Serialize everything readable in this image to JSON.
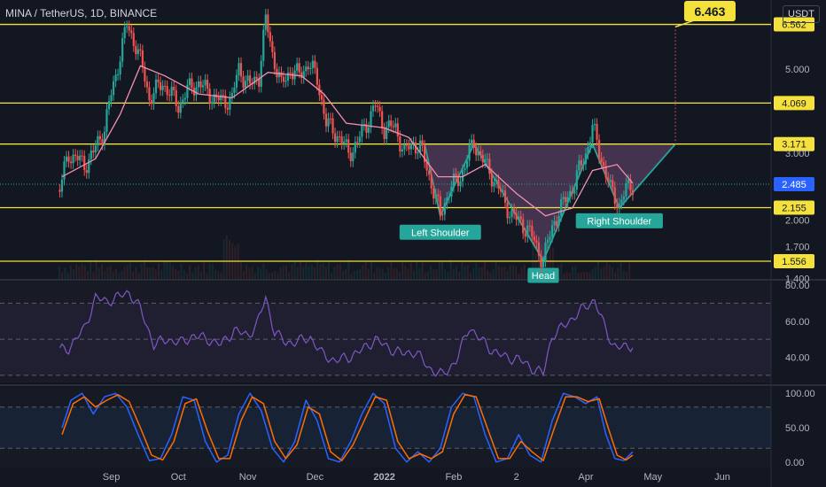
{
  "header": {
    "ticker": "MINA / TetherUS, 1D, BINANCE",
    "currency": "USDT"
  },
  "colors": {
    "background": "#131722",
    "up": "#26a69a",
    "down": "#ef5350",
    "ma": "#f48fb1",
    "level": "#f5e13b",
    "pattern_fill": "#6d4b74",
    "pattern_line": "#26a69a",
    "rsi": "#7e57c2",
    "stoch_k": "#2962ff",
    "stoch_d": "#ff6d00",
    "grid": "#2a2e39"
  },
  "chart_data": [
    {
      "type": "candlestick",
      "name": "price",
      "x_labels": [
        "Sep",
        "Oct",
        "Nov",
        "Dec",
        "2022",
        "Feb",
        "2",
        "Apr",
        "May",
        "Jun"
      ],
      "price_axis_ticks": [
        1.4,
        1.7,
        2.0,
        3.0,
        5.0
      ],
      "price_axis_tick_labels": [
        "1.400",
        "1.700",
        "2.000",
        "3.000",
        "5.000"
      ],
      "scale": "log",
      "ylim": [
        1.35,
        7.5
      ],
      "horizontal_levels": [
        6.562,
        4.069,
        3.171,
        2.155,
        1.556
      ],
      "level_labels": [
        "6.562",
        "4.069",
        "3.171",
        "2.155",
        "1.556"
      ],
      "last_price": 2.485,
      "last_price_label": "2.485",
      "target_value": 6.463,
      "target_label": "6.463",
      "pattern": {
        "name": "inverse head and shoulders",
        "neckline": 3.171,
        "labels": [
          "Left Shoulder",
          "Head",
          "Right Shoulder"
        ]
      },
      "price_path": [
        [
          "2021-08-09",
          2.4
        ],
        [
          "2021-08-13",
          3.0
        ],
        [
          "2021-08-20",
          2.8
        ],
        [
          "2021-08-24",
          3.0
        ],
        [
          "2021-08-29",
          3.5
        ],
        [
          "2021-09-03",
          4.8
        ],
        [
          "2021-09-08",
          6.5
        ],
        [
          "2021-09-12",
          5.8
        ],
        [
          "2021-09-18",
          4.2
        ],
        [
          "2021-09-24",
          4.6
        ],
        [
          "2021-10-01",
          4.0
        ],
        [
          "2021-10-05",
          4.4
        ],
        [
          "2021-10-10",
          4.6
        ],
        [
          "2021-10-15",
          4.3
        ],
        [
          "2021-10-20",
          4.1
        ],
        [
          "2021-10-25",
          4.2
        ],
        [
          "2021-10-28",
          5.0
        ],
        [
          "2021-11-02",
          4.5
        ],
        [
          "2021-11-06",
          4.8
        ],
        [
          "2021-11-09",
          6.7
        ],
        [
          "2021-11-12",
          5.5
        ],
        [
          "2021-11-16",
          4.5
        ],
        [
          "2021-11-20",
          5.0
        ],
        [
          "2021-11-24",
          4.8
        ],
        [
          "2021-11-28",
          5.2
        ],
        [
          "2021-12-02",
          4.7
        ],
        [
          "2021-12-06",
          3.6
        ],
        [
          "2021-12-12",
          3.3
        ],
        [
          "2021-12-16",
          3.0
        ],
        [
          "2021-12-20",
          3.2
        ],
        [
          "2021-12-24",
          3.6
        ],
        [
          "2021-12-28",
          4.0
        ],
        [
          "2022-01-01",
          3.5
        ],
        [
          "2022-01-06",
          3.5
        ],
        [
          "2022-01-10",
          3.0
        ],
        [
          "2022-01-14",
          3.2
        ],
        [
          "2022-01-17",
          3.1
        ],
        [
          "2022-01-22",
          2.5
        ],
        [
          "2022-01-26",
          2.05
        ],
        [
          "2022-01-30",
          2.4
        ],
        [
          "2022-02-04",
          2.6
        ],
        [
          "2022-02-10",
          3.2
        ],
        [
          "2022-02-15",
          2.8
        ],
        [
          "2022-02-20",
          2.5
        ],
        [
          "2022-02-24",
          2.2
        ],
        [
          "2022-03-01",
          2.0
        ],
        [
          "2022-03-06",
          1.9
        ],
        [
          "2022-03-10",
          1.7
        ],
        [
          "2022-03-13",
          1.56
        ],
        [
          "2022-03-18",
          2.0
        ],
        [
          "2022-03-22",
          2.2
        ],
        [
          "2022-03-27",
          2.5
        ],
        [
          "2022-04-01",
          3.0
        ],
        [
          "2022-04-04",
          3.5
        ],
        [
          "2022-04-08",
          2.9
        ],
        [
          "2022-04-12",
          2.4
        ],
        [
          "2022-04-16",
          2.2
        ],
        [
          "2022-04-19",
          2.4
        ],
        [
          "2022-04-22",
          2.485
        ]
      ],
      "moving_average": [
        [
          "2021-08-10",
          2.6
        ],
        [
          "2021-08-25",
          2.9
        ],
        [
          "2021-09-05",
          3.8
        ],
        [
          "2021-09-14",
          5.1
        ],
        [
          "2021-09-25",
          4.8
        ],
        [
          "2021-10-10",
          4.3
        ],
        [
          "2021-10-25",
          4.2
        ],
        [
          "2021-11-10",
          4.9
        ],
        [
          "2021-11-25",
          4.8
        ],
        [
          "2021-12-05",
          4.3
        ],
        [
          "2021-12-15",
          3.6
        ],
        [
          "2022-01-01",
          3.5
        ],
        [
          "2022-01-12",
          3.3
        ],
        [
          "2022-01-25",
          2.6
        ],
        [
          "2022-02-05",
          2.6
        ],
        [
          "2022-02-15",
          2.8
        ],
        [
          "2022-03-01",
          2.35
        ],
        [
          "2022-03-14",
          2.05
        ],
        [
          "2022-03-26",
          2.15
        ],
        [
          "2022-04-04",
          2.7
        ],
        [
          "2022-04-15",
          2.8
        ],
        [
          "2022-04-22",
          2.5
        ]
      ]
    },
    {
      "type": "line",
      "name": "RSI",
      "y_ticks": [
        40,
        60,
        80
      ],
      "y_tick_labels": [
        "40.00",
        "60.00",
        "80.00"
      ],
      "ylim": [
        26,
        82
      ],
      "band": [
        30,
        70
      ],
      "midline": 50,
      "points": [
        [
          "2021-08-09",
          44
        ],
        [
          "2021-08-13",
          45
        ],
        [
          "2021-08-20",
          56
        ],
        [
          "2021-08-25",
          73
        ],
        [
          "2021-08-30",
          71
        ],
        [
          "2021-09-05",
          74
        ],
        [
          "2021-09-09",
          76
        ],
        [
          "2021-09-14",
          67
        ],
        [
          "2021-09-20",
          47
        ],
        [
          "2021-09-26",
          50
        ],
        [
          "2021-10-02",
          48
        ],
        [
          "2021-10-08",
          52
        ],
        [
          "2021-10-14",
          50
        ],
        [
          "2021-10-20",
          47
        ],
        [
          "2021-10-26",
          55
        ],
        [
          "2021-11-01",
          52
        ],
        [
          "2021-11-05",
          58
        ],
        [
          "2021-11-09",
          73
        ],
        [
          "2021-11-13",
          54
        ],
        [
          "2021-11-18",
          48
        ],
        [
          "2021-11-24",
          49
        ],
        [
          "2021-11-29",
          51
        ],
        [
          "2021-12-04",
          42
        ],
        [
          "2021-12-10",
          38
        ],
        [
          "2021-12-16",
          40
        ],
        [
          "2021-12-22",
          44
        ],
        [
          "2021-12-28",
          50
        ],
        [
          "2022-01-03",
          45
        ],
        [
          "2022-01-09",
          42
        ],
        [
          "2022-01-15",
          43
        ],
        [
          "2022-01-21",
          34
        ],
        [
          "2022-01-27",
          30
        ],
        [
          "2022-02-02",
          38
        ],
        [
          "2022-02-08",
          57
        ],
        [
          "2022-02-12",
          51
        ],
        [
          "2022-02-18",
          44
        ],
        [
          "2022-02-24",
          40
        ],
        [
          "2022-03-02",
          39
        ],
        [
          "2022-03-08",
          34
        ],
        [
          "2022-03-13",
          31
        ],
        [
          "2022-03-17",
          52
        ],
        [
          "2022-03-22",
          57
        ],
        [
          "2022-03-28",
          64
        ],
        [
          "2022-04-01",
          68
        ],
        [
          "2022-04-05",
          72
        ],
        [
          "2022-04-09",
          58
        ],
        [
          "2022-04-13",
          47
        ],
        [
          "2022-04-18",
          45
        ],
        [
          "2022-04-22",
          47
        ]
      ]
    },
    {
      "type": "line",
      "name": "Stochastic RSI",
      "y_ticks": [
        0,
        50,
        100
      ],
      "y_tick_labels": [
        "0.00",
        "50.00",
        "100.00"
      ],
      "ylim": [
        -8,
        108
      ],
      "band": [
        20,
        80
      ],
      "series": [
        {
          "points": [
            [
              "2021-08-10",
              50
            ],
            [
              "2021-08-14",
              90
            ],
            [
              "2021-08-19",
              100
            ],
            [
              "2021-08-24",
              70
            ],
            [
              "2021-08-29",
              95
            ],
            [
              "2021-09-03",
              100
            ],
            [
              "2021-09-08",
              80
            ],
            [
              "2021-09-13",
              40
            ],
            [
              "2021-09-18",
              2
            ],
            [
              "2021-09-23",
              5
            ],
            [
              "2021-09-28",
              40
            ],
            [
              "2021-10-03",
              95
            ],
            [
              "2021-10-08",
              90
            ],
            [
              "2021-10-13",
              30
            ],
            [
              "2021-10-18",
              0
            ],
            [
              "2021-10-23",
              10
            ],
            [
              "2021-10-28",
              70
            ],
            [
              "2021-11-02",
              100
            ],
            [
              "2021-11-07",
              75
            ],
            [
              "2021-11-12",
              20
            ],
            [
              "2021-11-17",
              0
            ],
            [
              "2021-11-22",
              30
            ],
            [
              "2021-11-27",
              90
            ],
            [
              "2021-12-02",
              60
            ],
            [
              "2021-12-07",
              5
            ],
            [
              "2021-12-12",
              0
            ],
            [
              "2021-12-17",
              30
            ],
            [
              "2021-12-22",
              70
            ],
            [
              "2021-12-27",
              100
            ],
            [
              "2022-01-01",
              85
            ],
            [
              "2022-01-06",
              20
            ],
            [
              "2022-01-11",
              0
            ],
            [
              "2022-01-16",
              15
            ],
            [
              "2022-01-21",
              0
            ],
            [
              "2022-01-26",
              20
            ],
            [
              "2022-01-31",
              80
            ],
            [
              "2022-02-05",
              100
            ],
            [
              "2022-02-10",
              95
            ],
            [
              "2022-02-15",
              40
            ],
            [
              "2022-02-20",
              0
            ],
            [
              "2022-02-25",
              5
            ],
            [
              "2022-03-02",
              40
            ],
            [
              "2022-03-07",
              10
            ],
            [
              "2022-03-12",
              0
            ],
            [
              "2022-03-17",
              60
            ],
            [
              "2022-03-22",
              100
            ],
            [
              "2022-03-27",
              95
            ],
            [
              "2022-04-01",
              85
            ],
            [
              "2022-04-06",
              95
            ],
            [
              "2022-04-10",
              40
            ],
            [
              "2022-04-14",
              5
            ],
            [
              "2022-04-18",
              2
            ],
            [
              "2022-04-22",
              15
            ]
          ]
        },
        {
          "points": [
            [
              "2021-08-10",
              40
            ],
            [
              "2021-08-15",
              85
            ],
            [
              "2021-08-20",
              95
            ],
            [
              "2021-08-25",
              80
            ],
            [
              "2021-08-30",
              90
            ],
            [
              "2021-09-04",
              98
            ],
            [
              "2021-09-09",
              88
            ],
            [
              "2021-09-14",
              50
            ],
            [
              "2021-09-19",
              10
            ],
            [
              "2021-09-24",
              3
            ],
            [
              "2021-09-29",
              30
            ],
            [
              "2021-10-04",
              85
            ],
            [
              "2021-10-09",
              92
            ],
            [
              "2021-10-14",
              45
            ],
            [
              "2021-10-19",
              5
            ],
            [
              "2021-10-24",
              5
            ],
            [
              "2021-10-29",
              60
            ],
            [
              "2021-11-03",
              95
            ],
            [
              "2021-11-08",
              85
            ],
            [
              "2021-11-13",
              30
            ],
            [
              "2021-11-18",
              5
            ],
            [
              "2021-11-23",
              25
            ],
            [
              "2021-11-28",
              80
            ],
            [
              "2021-12-03",
              70
            ],
            [
              "2021-12-08",
              15
            ],
            [
              "2021-12-13",
              2
            ],
            [
              "2021-12-18",
              25
            ],
            [
              "2021-12-23",
              60
            ],
            [
              "2021-12-28",
              95
            ],
            [
              "2022-01-02",
              90
            ],
            [
              "2022-01-07",
              30
            ],
            [
              "2022-01-12",
              5
            ],
            [
              "2022-01-17",
              12
            ],
            [
              "2022-01-22",
              5
            ],
            [
              "2022-01-27",
              15
            ],
            [
              "2022-02-01",
              70
            ],
            [
              "2022-02-06",
              98
            ],
            [
              "2022-02-11",
              95
            ],
            [
              "2022-02-16",
              50
            ],
            [
              "2022-02-21",
              5
            ],
            [
              "2022-02-26",
              5
            ],
            [
              "2022-03-03",
              30
            ],
            [
              "2022-03-08",
              15
            ],
            [
              "2022-03-13",
              2
            ],
            [
              "2022-03-18",
              50
            ],
            [
              "2022-03-23",
              95
            ],
            [
              "2022-03-28",
              95
            ],
            [
              "2022-04-02",
              88
            ],
            [
              "2022-04-07",
              92
            ],
            [
              "2022-04-11",
              50
            ],
            [
              "2022-04-15",
              10
            ],
            [
              "2022-04-19",
              3
            ],
            [
              "2022-04-22",
              10
            ]
          ]
        }
      ]
    }
  ]
}
